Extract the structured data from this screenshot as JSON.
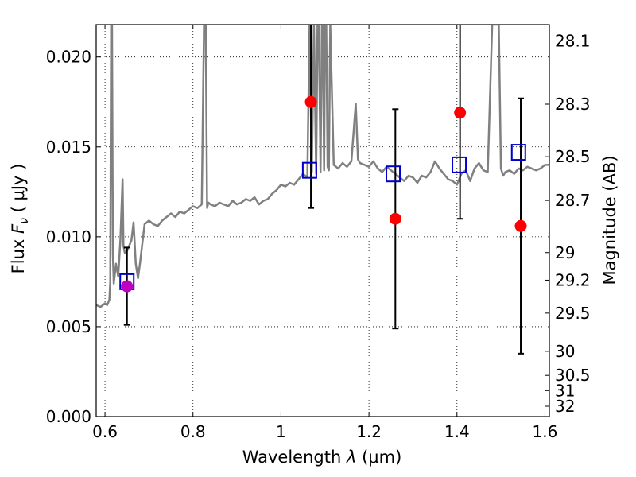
{
  "chart_data": {
    "type": "scatter",
    "xlabel": "Wavelength",
    "xlabel_symbol": "λ",
    "xlabel_unit": "(μm)",
    "ylabel": "Flux",
    "ylabel_symbol": "F",
    "ylabel_subscript": "ν",
    "ylabel_unit": "( μJy )",
    "y2label": "Magnitude (AB)",
    "xlim": [
      0.58,
      1.61
    ],
    "ylim": [
      0.0,
      0.0218
    ],
    "x_ticks": [
      0.6,
      0.8,
      1.0,
      1.2,
      1.4,
      1.6
    ],
    "x_tick_labels": [
      "0.6",
      "0.8",
      "1",
      "1.2",
      "1.4",
      "1.6"
    ],
    "y_ticks": [
      0.0,
      0.005,
      0.01,
      0.015,
      0.02
    ],
    "y_tick_labels": [
      "0.000",
      "0.005",
      "0.010",
      "0.015",
      "0.020"
    ],
    "y2_ticks": [
      {
        "mag": 28.1,
        "label": "28.1"
      },
      {
        "mag": 28.3,
        "label": "28.3"
      },
      {
        "mag": 28.5,
        "label": "28.5"
      },
      {
        "mag": 28.7,
        "label": "28.7"
      },
      {
        "mag": 29.0,
        "label": "29"
      },
      {
        "mag": 29.2,
        "label": "29.2"
      },
      {
        "mag": 29.5,
        "label": "29.5"
      },
      {
        "mag": 30.0,
        "label": "30"
      },
      {
        "mag": 30.5,
        "label": "30.5"
      },
      {
        "mag": 31.0,
        "label": "31"
      },
      {
        "mag": 32.0,
        "label": "32"
      }
    ],
    "grid": "dotted",
    "colors": {
      "model_spectrum": "#808080",
      "observed_points": "#ff0000",
      "observed_point_optical": "#bf00bf",
      "model_photometry": "#0000cc",
      "error_bars": "#000000"
    },
    "model_spectrum": {
      "x": [
        0.58,
        0.59,
        0.6,
        0.605,
        0.61,
        0.612,
        0.614,
        0.616,
        0.618,
        0.62,
        0.625,
        0.63,
        0.635,
        0.64,
        0.642,
        0.645,
        0.65,
        0.66,
        0.665,
        0.67,
        0.675,
        0.68,
        0.69,
        0.7,
        0.71,
        0.72,
        0.73,
        0.74,
        0.75,
        0.76,
        0.77,
        0.78,
        0.79,
        0.8,
        0.81,
        0.82,
        0.825,
        0.827,
        0.829,
        0.832,
        0.835,
        0.84,
        0.85,
        0.86,
        0.87,
        0.88,
        0.89,
        0.9,
        0.91,
        0.92,
        0.93,
        0.94,
        0.95,
        0.96,
        0.97,
        0.98,
        0.99,
        1.0,
        1.01,
        1.02,
        1.03,
        1.04,
        1.05,
        1.06,
        1.065,
        1.07,
        1.075,
        1.08,
        1.083,
        1.086,
        1.09,
        1.093,
        1.095,
        1.098,
        1.1,
        1.103,
        1.106,
        1.109,
        1.112,
        1.12,
        1.13,
        1.14,
        1.15,
        1.16,
        1.17,
        1.175,
        1.18,
        1.19,
        1.2,
        1.21,
        1.22,
        1.23,
        1.24,
        1.25,
        1.26,
        1.27,
        1.28,
        1.29,
        1.3,
        1.31,
        1.32,
        1.33,
        1.34,
        1.35,
        1.36,
        1.37,
        1.38,
        1.39,
        1.4,
        1.41,
        1.42,
        1.43,
        1.44,
        1.45,
        1.46,
        1.47,
        1.48,
        1.485,
        1.49,
        1.495,
        1.5,
        1.505,
        1.51,
        1.52,
        1.53,
        1.54,
        1.55,
        1.56,
        1.57,
        1.58,
        1.59,
        1.6,
        1.61
      ],
      "y": [
        0.0062,
        0.0061,
        0.0063,
        0.0062,
        0.0065,
        0.0075,
        0.0218,
        0.0218,
        0.009,
        0.0074,
        0.0085,
        0.0078,
        0.0098,
        0.0132,
        0.0095,
        0.0091,
        0.0092,
        0.0098,
        0.0108,
        0.0085,
        0.0077,
        0.0086,
        0.0107,
        0.0109,
        0.0107,
        0.0106,
        0.0109,
        0.0111,
        0.0113,
        0.0111,
        0.0114,
        0.0113,
        0.0115,
        0.0117,
        0.0116,
        0.0118,
        0.0218,
        0.0218,
        0.0218,
        0.0116,
        0.0119,
        0.0118,
        0.0117,
        0.0119,
        0.0118,
        0.0117,
        0.012,
        0.0118,
        0.0119,
        0.0121,
        0.012,
        0.0122,
        0.0118,
        0.012,
        0.0121,
        0.0124,
        0.0126,
        0.0129,
        0.0128,
        0.013,
        0.0129,
        0.0132,
        0.0135,
        0.0133,
        0.0218,
        0.0136,
        0.0218,
        0.0135,
        0.0218,
        0.0218,
        0.0136,
        0.0218,
        0.0218,
        0.0137,
        0.0218,
        0.0218,
        0.0139,
        0.0137,
        0.0218,
        0.014,
        0.0138,
        0.0141,
        0.0139,
        0.0142,
        0.0174,
        0.0143,
        0.0141,
        0.014,
        0.0139,
        0.0142,
        0.0138,
        0.0136,
        0.0139,
        0.0137,
        0.0135,
        0.0133,
        0.0131,
        0.0134,
        0.0133,
        0.013,
        0.0134,
        0.0133,
        0.0136,
        0.0142,
        0.0138,
        0.0135,
        0.0132,
        0.0131,
        0.0129,
        0.0135,
        0.0137,
        0.0131,
        0.0138,
        0.0141,
        0.0137,
        0.0136,
        0.0218,
        0.0218,
        0.0218,
        0.0218,
        0.0138,
        0.0134,
        0.0136,
        0.0137,
        0.0135,
        0.0138,
        0.0137,
        0.0139,
        0.0138,
        0.0137,
        0.0138,
        0.014,
        0.014
      ]
    },
    "observed_points": [
      {
        "x": 0.65,
        "y": 0.00725,
        "err_low": 0.0051,
        "err_high": 0.0094,
        "color": "#bf00bf"
      },
      {
        "x": 1.068,
        "y": 0.0175,
        "err_low": 0.0116,
        "err_high": 0.0218,
        "color": "#ff0000"
      },
      {
        "x": 1.26,
        "y": 0.011,
        "err_low": 0.0049,
        "err_high": 0.0171,
        "color": "#ff0000"
      },
      {
        "x": 1.407,
        "y": 0.0169,
        "err_low": 0.011,
        "err_high": 0.0218,
        "color": "#ff0000"
      },
      {
        "x": 1.545,
        "y": 0.0106,
        "err_low": 0.0035,
        "err_high": 0.0177,
        "color": "#ff0000"
      }
    ],
    "model_photometry": [
      {
        "x": 0.65,
        "y": 0.0075
      },
      {
        "x": 1.065,
        "y": 0.0137
      },
      {
        "x": 1.255,
        "y": 0.0135
      },
      {
        "x": 1.405,
        "y": 0.014
      },
      {
        "x": 1.54,
        "y": 0.0147
      }
    ]
  }
}
